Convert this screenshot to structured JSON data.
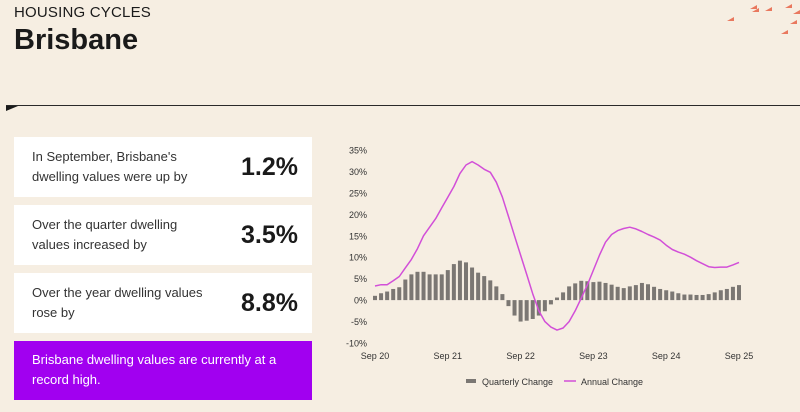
{
  "header": {
    "kicker": "HOUSING CYCLES",
    "title": "Brisbane"
  },
  "cards": [
    {
      "text": "In September, Brisbane's dwelling values were up by",
      "value": "1.2%"
    },
    {
      "text": "Over the quarter dwelling values increased by",
      "value": "3.5%"
    },
    {
      "text": "Over the year dwelling values rose by",
      "value": "8.8%"
    }
  ],
  "highlight": "Brisbane dwelling values are currently at a record high.",
  "colors": {
    "bar": "#7b7773",
    "line": "#d24fd8",
    "highlight": "#a100f0"
  },
  "chart_data": {
    "type": "bar+line",
    "x_tick_labels": [
      "Sep 20",
      "Sep 21",
      "Sep 22",
      "Sep 23",
      "Sep 24",
      "Sep 25"
    ],
    "y_tick_labels": [
      "35%",
      "30%",
      "25%",
      "20%",
      "15%",
      "10%",
      "5%",
      "0%",
      "-5%",
      "-10%"
    ],
    "ylim": [
      -10,
      35
    ],
    "series": [
      {
        "name": "Quarterly Change",
        "type": "bar",
        "values": [
          1.0,
          1.6,
          2.0,
          2.6,
          3.0,
          4.8,
          6.0,
          6.6,
          6.6,
          6.0,
          6.0,
          6.0,
          7.0,
          8.4,
          9.2,
          8.8,
          7.6,
          6.4,
          5.6,
          4.6,
          3.2,
          1.4,
          -1.4,
          -3.6,
          -5.0,
          -4.8,
          -4.4,
          -3.6,
          -2.6,
          -1.0,
          0.6,
          1.8,
          3.2,
          3.9,
          4.5,
          4.4,
          4.2,
          4.3,
          4.0,
          3.6,
          3.1,
          2.8,
          3.2,
          3.5,
          4.0,
          3.7,
          3.1,
          2.6,
          2.3,
          2.0,
          1.6,
          1.3,
          1.3,
          1.2,
          1.2,
          1.4,
          1.8,
          2.3,
          2.6,
          3.1,
          3.5
        ]
      },
      {
        "name": "Annual Change",
        "type": "line",
        "values": [
          3.3,
          3.6,
          3.6,
          4.5,
          5.5,
          7.5,
          9.5,
          12,
          15,
          17,
          19,
          21.5,
          24,
          26.5,
          29.5,
          31.5,
          32.3,
          31.5,
          30.5,
          29.8,
          27.5,
          24,
          19.5,
          15,
          10.5,
          6,
          1.5,
          -2.5,
          -5,
          -6.3,
          -7,
          -6.5,
          -5,
          -2.5,
          0.5,
          3.5,
          7,
          10.5,
          13.5,
          15.3,
          16.2,
          16.7,
          17,
          16.6,
          16,
          15.3,
          14.7,
          14,
          12.8,
          11.8,
          11.2,
          10.7,
          10,
          9.2,
          8.5,
          7.8,
          7.6,
          7.7,
          7.7,
          8.2,
          8.8
        ]
      }
    ],
    "legend": "bottom"
  }
}
